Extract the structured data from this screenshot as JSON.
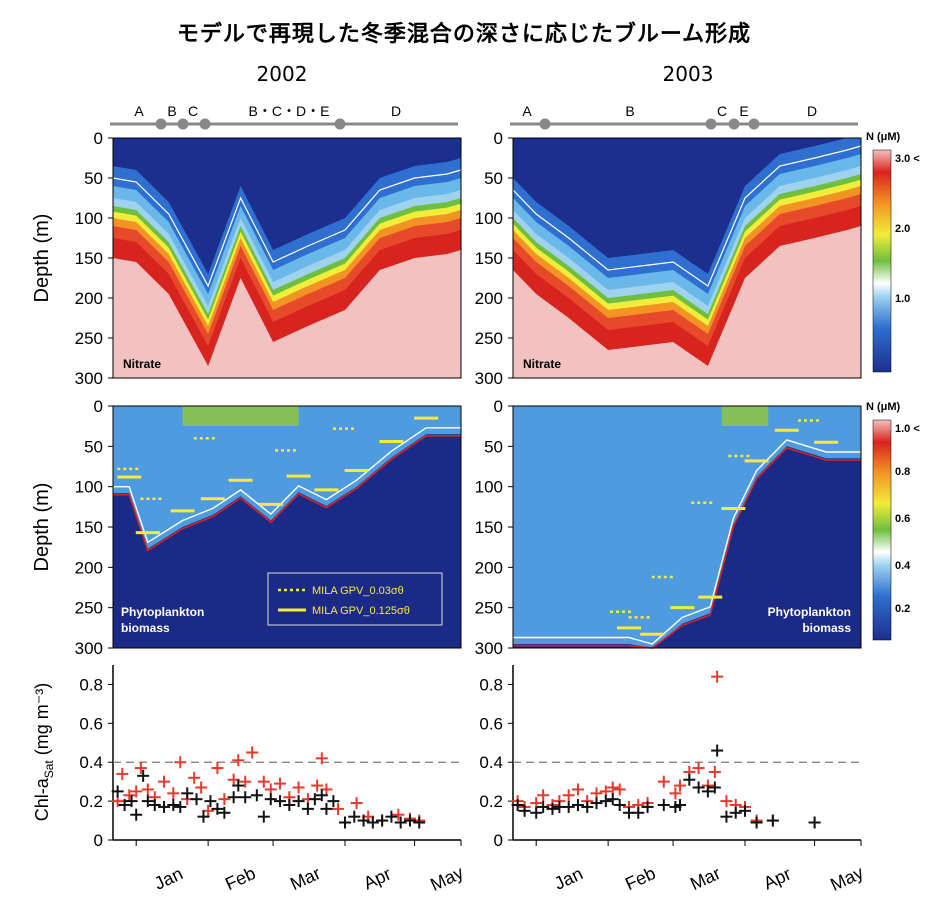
{
  "title": "モデルで再現した冬季混合の深さに応じたブルーム形成",
  "years": [
    "2002",
    "2003"
  ],
  "ylabel_depth": "Depth (m)",
  "ylabel_chl": "Chl-a",
  "ylabel_chl_sub": "Sat",
  "ylabel_chl_unit": " (mg m⁻³)",
  "colorbar_unit": "N (μM)",
  "colorbar_nitrate": {
    "ticks": [
      "3.0 <",
      "2.0",
      "1.0"
    ]
  },
  "colorbar_phyto": {
    "ticks": [
      "1.0 <",
      "0.8",
      "0.6",
      "0.4",
      "0.2"
    ]
  },
  "panel_labels": {
    "nitrate": "Nitrate",
    "phyto1": "Phytoplankton",
    "phyto2": "biomass"
  },
  "legend": {
    "dotted": "MILA GPV_0.03σθ",
    "solid": "MILA GPV_0.125σθ"
  },
  "months": [
    "Jan",
    "Feb",
    "Mar",
    "Apr",
    "May"
  ],
  "depth_ticks": [
    "0",
    "50",
    "100",
    "150",
    "200",
    "250",
    "300"
  ],
  "chl_ticks": [
    "0",
    "0.2",
    "0.4",
    "0.6",
    "0.8"
  ],
  "timeline": {
    "2002": [
      "A",
      "B",
      "C",
      "B・C・D・E",
      "D"
    ],
    "2003": [
      "A",
      "B",
      "C",
      "E",
      "D"
    ]
  },
  "chart_data": [
    {
      "type": "heatmap",
      "panel": "Nitrate 2002",
      "ylabel": "Depth (m)",
      "ylim": [
        300,
        0
      ],
      "x": [
        "Dec 20",
        "Jan 1",
        "Jan 15",
        "Feb 1",
        "Feb 15",
        "Mar 1",
        "Mar 15",
        "Apr 1",
        "Apr 15",
        "May 1",
        "May 15",
        "May 31"
      ],
      "nitracline_depth_m": [
        95,
        100,
        140,
        230,
        120,
        200,
        180,
        160,
        110,
        95,
        90,
        85
      ],
      "colorbar": {
        "label": "N (μM)",
        "ticks": [
          1.0,
          2.0,
          3.0
        ]
      }
    },
    {
      "type": "heatmap",
      "panel": "Nitrate 2003",
      "ylabel": "Depth (m)",
      "ylim": [
        300,
        0
      ],
      "x": [
        "Dec 20",
        "Jan 1",
        "Jan 15",
        "Feb 1",
        "Feb 15",
        "Mar 1",
        "Mar 15",
        "Apr 1",
        "Apr 15",
        "May 1",
        "May 15",
        "May 31"
      ],
      "nitracline_depth_m": [
        110,
        140,
        170,
        210,
        205,
        200,
        230,
        120,
        80,
        70,
        60,
        55
      ],
      "colorbar": {
        "label": "N (μM)",
        "ticks": [
          1.0,
          2.0,
          3.0
        ]
      }
    },
    {
      "type": "heatmap",
      "panel": "Phytoplankton biomass 2002",
      "ylabel": "Depth (m)",
      "ylim": [
        300,
        0
      ],
      "series": [
        {
          "name": "MILA GPV_0.03σθ",
          "style": "dotted",
          "values": [
            [
              -3,
              78
            ],
            [
              7,
              115
            ],
            [
              30,
              40
            ],
            [
              65,
              55
            ],
            [
              90,
              28
            ],
            [
              125,
              15
            ]
          ]
        },
        {
          "name": "MILA GPV_0.125σθ",
          "style": "solid",
          "values": [
            [
              -3,
              88
            ],
            [
              5,
              157
            ],
            [
              20,
              130
            ],
            [
              33,
              115
            ],
            [
              45,
              92
            ],
            [
              58,
              122
            ],
            [
              70,
              87
            ],
            [
              82,
              104
            ],
            [
              95,
              80
            ],
            [
              110,
              44
            ],
            [
              125,
              15
            ]
          ]
        }
      ],
      "colorbar": {
        "label": "N (μM)",
        "ticks": [
          0.2,
          0.4,
          0.6,
          0.8,
          1.0
        ]
      }
    },
    {
      "type": "heatmap",
      "panel": "Phytoplankton biomass 2003",
      "ylabel": "Depth (m)",
      "ylim": [
        300,
        0
      ],
      "series": [
        {
          "name": "MILA GPV_0.03σθ",
          "style": "dotted",
          "values": [
            [
              37,
              255
            ],
            [
              45,
              262
            ],
            [
              55,
              212
            ],
            [
              72,
              120
            ],
            [
              88,
              62
            ],
            [
              118,
              18
            ]
          ]
        },
        {
          "name": "MILA GPV_0.125σθ",
          "style": "solid",
          "values": [
            [
              40,
              275
            ],
            [
              50,
              283
            ],
            [
              63,
              250
            ],
            [
              75,
              237
            ],
            [
              85,
              127
            ],
            [
              95,
              68
            ],
            [
              108,
              30
            ],
            [
              125,
              45
            ]
          ]
        }
      ],
      "colorbar": {
        "label": "N (μM)",
        "ticks": [
          0.2,
          0.4,
          0.6,
          0.8,
          1.0
        ]
      }
    },
    {
      "type": "scatter",
      "panel": "Chl-a Sat 2002",
      "ylabel": "Chl-a Sat (mg m⁻³)",
      "ylim": [
        0,
        0.9
      ],
      "reference_line": 0.4,
      "series": [
        {
          "name": "red",
          "values": [
            [
              -8,
              0.2
            ],
            [
              -6,
              0.34
            ],
            [
              -3,
              0.23
            ],
            [
              0,
              0.25
            ],
            [
              2,
              0.37
            ],
            [
              5,
              0.26
            ],
            [
              8,
              0.22
            ],
            [
              12,
              0.3
            ],
            [
              16,
              0.24
            ],
            [
              19,
              0.4
            ],
            [
              22,
              0.21
            ],
            [
              25,
              0.32
            ],
            [
              28,
              0.27
            ],
            [
              31,
              0.15
            ],
            [
              35,
              0.37
            ],
            [
              38,
              0.21
            ],
            [
              42,
              0.31
            ],
            [
              44,
              0.41
            ],
            [
              47,
              0.3
            ],
            [
              50,
              0.45
            ],
            [
              55,
              0.3
            ],
            [
              58,
              0.26
            ],
            [
              62,
              0.29
            ],
            [
              66,
              0.22
            ],
            [
              70,
              0.27
            ],
            [
              74,
              0.21
            ],
            [
              78,
              0.28
            ],
            [
              80,
              0.42
            ],
            [
              82,
              0.26
            ],
            [
              87,
              0.16
            ],
            [
              95,
              0.19
            ],
            [
              100,
              0.12
            ],
            [
              106,
              0.1
            ],
            [
              113,
              0.13
            ],
            [
              118,
              0.11
            ],
            [
              122,
              0.1
            ]
          ]
        },
        {
          "name": "black",
          "values": [
            [
              -8,
              0.25
            ],
            [
              -5,
              0.18
            ],
            [
              -2,
              0.2
            ],
            [
              0,
              0.13
            ],
            [
              3,
              0.33
            ],
            [
              5,
              0.2
            ],
            [
              8,
              0.18
            ],
            [
              12,
              0.17
            ],
            [
              16,
              0.18
            ],
            [
              19,
              0.17
            ],
            [
              22,
              0.24
            ],
            [
              26,
              0.21
            ],
            [
              29,
              0.12
            ],
            [
              32,
              0.2
            ],
            [
              35,
              0.16
            ],
            [
              38,
              0.14
            ],
            [
              42,
              0.22
            ],
            [
              44,
              0.28
            ],
            [
              47,
              0.22
            ],
            [
              52,
              0.23
            ],
            [
              55,
              0.12
            ],
            [
              58,
              0.21
            ],
            [
              62,
              0.2
            ],
            [
              66,
              0.18
            ],
            [
              70,
              0.2
            ],
            [
              74,
              0.16
            ],
            [
              77,
              0.21
            ],
            [
              80,
              0.23
            ],
            [
              82,
              0.16
            ],
            [
              85,
              0.2
            ],
            [
              90,
              0.09
            ],
            [
              94,
              0.12
            ],
            [
              98,
              0.1
            ],
            [
              102,
              0.09
            ],
            [
              106,
              0.1
            ],
            [
              110,
              0.12
            ],
            [
              114,
              0.09
            ],
            [
              118,
              0.1
            ],
            [
              122,
              0.09
            ]
          ]
        }
      ]
    },
    {
      "type": "scatter",
      "panel": "Chl-a Sat 2003",
      "ylabel": "Chl-a Sat (mg m⁻³)",
      "ylim": [
        0,
        0.9
      ],
      "reference_line": 0.4,
      "series": [
        {
          "name": "red",
          "values": [
            [
              -8,
              0.2
            ],
            [
              -5,
              0.17
            ],
            [
              0,
              0.19
            ],
            [
              3,
              0.23
            ],
            [
              7,
              0.18
            ],
            [
              10,
              0.2
            ],
            [
              14,
              0.23
            ],
            [
              18,
              0.26
            ],
            [
              22,
              0.2
            ],
            [
              26,
              0.24
            ],
            [
              30,
              0.25
            ],
            [
              33,
              0.27
            ],
            [
              36,
              0.26
            ],
            [
              40,
              0.17
            ],
            [
              44,
              0.18
            ],
            [
              48,
              0.19
            ],
            [
              55,
              0.3
            ],
            [
              60,
              0.24
            ],
            [
              62,
              0.28
            ],
            [
              66,
              0.35
            ],
            [
              70,
              0.37
            ],
            [
              74,
              0.28
            ],
            [
              77,
              0.35
            ],
            [
              78,
              0.84
            ],
            [
              82,
              0.2
            ],
            [
              86,
              0.18
            ],
            [
              90,
              0.17
            ],
            [
              95,
              0.1
            ],
            [
              102,
              0.1
            ],
            [
              120,
              0.09
            ]
          ]
        },
        {
          "name": "black",
          "values": [
            [
              -8,
              0.18
            ],
            [
              -5,
              0.15
            ],
            [
              0,
              0.14
            ],
            [
              3,
              0.17
            ],
            [
              7,
              0.16
            ],
            [
              10,
              0.17
            ],
            [
              14,
              0.17
            ],
            [
              18,
              0.18
            ],
            [
              22,
              0.17
            ],
            [
              26,
              0.19
            ],
            [
              30,
              0.2
            ],
            [
              33,
              0.21
            ],
            [
              36,
              0.18
            ],
            [
              40,
              0.14
            ],
            [
              44,
              0.14
            ],
            [
              48,
              0.17
            ],
            [
              55,
              0.18
            ],
            [
              60,
              0.17
            ],
            [
              62,
              0.18
            ],
            [
              66,
              0.31
            ],
            [
              70,
              0.27
            ],
            [
              74,
              0.25
            ],
            [
              77,
              0.27
            ],
            [
              78,
              0.46
            ],
            [
              82,
              0.12
            ],
            [
              86,
              0.14
            ],
            [
              90,
              0.15
            ],
            [
              95,
              0.09
            ],
            [
              102,
              0.1
            ],
            [
              120,
              0.09
            ]
          ]
        }
      ]
    }
  ]
}
